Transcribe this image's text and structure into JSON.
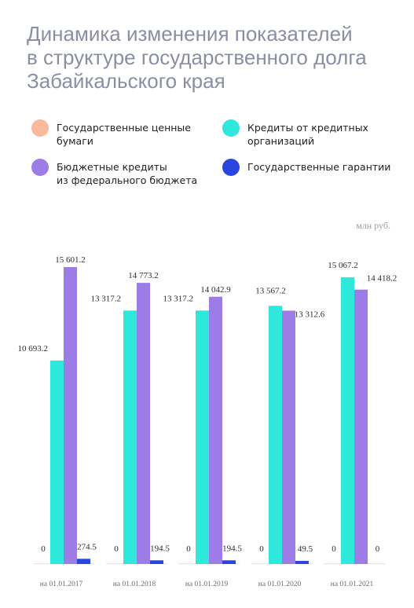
{
  "title": {
    "lines": [
      "Динамика изменения показателей",
      "в структуре государственного долга",
      "Забайкальского края"
    ]
  },
  "unit": "млн руб.",
  "legend": [
    {
      "label": "Государственные ценные\nбумаги",
      "color": "#f9b99a"
    },
    {
      "label": "Кредиты от кредитных\nорганизаций",
      "color": "#2ee8dc"
    },
    {
      "label": "Бюджетные кредиты\nиз федерального бюджета",
      "color": "#9e7ce8"
    },
    {
      "label": "Государственные гарантии",
      "color": "#2b45e0"
    }
  ],
  "chart_data": {
    "type": "bar",
    "categories": [
      "на 01.01.2017",
      "на 01.01.2018",
      "на 01.01.2019",
      "на 01.01.2020",
      "на 01.01.2021"
    ],
    "series": [
      {
        "name": "Государственные ценные бумаги",
        "color": "#f9b99a",
        "values": [
          0,
          0,
          0,
          0,
          0
        ],
        "labels": [
          "0",
          "0",
          "0",
          "0",
          "0"
        ]
      },
      {
        "name": "Кредиты от кредитных организаций",
        "color": "#2ee8dc",
        "values": [
          10693.2,
          13317.2,
          13317.2,
          13567.2,
          15067.2
        ],
        "labels": [
          "10 693.2",
          "13 317.2",
          "13 317.2",
          "13 567.2",
          "15 067.2"
        ]
      },
      {
        "name": "Бюджетные кредиты из федерального бюджета",
        "color": "#9e7ce8",
        "values": [
          15601.2,
          14773.2,
          14042.9,
          13312.6,
          14418.2
        ],
        "labels": [
          "15 601.2",
          "14 773.2",
          "14 042.9",
          "13 312.6",
          "14 418.2"
        ]
      },
      {
        "name": "Государственные гарантии",
        "color": "#2b45e0",
        "values": [
          274.5,
          194.5,
          194.5,
          49.5,
          0
        ],
        "labels": [
          "274.5",
          "194.5",
          "194.5",
          "49.5",
          "0"
        ]
      }
    ],
    "ylim": [
      0,
      16000
    ],
    "grid": false,
    "legend_position": "top"
  }
}
